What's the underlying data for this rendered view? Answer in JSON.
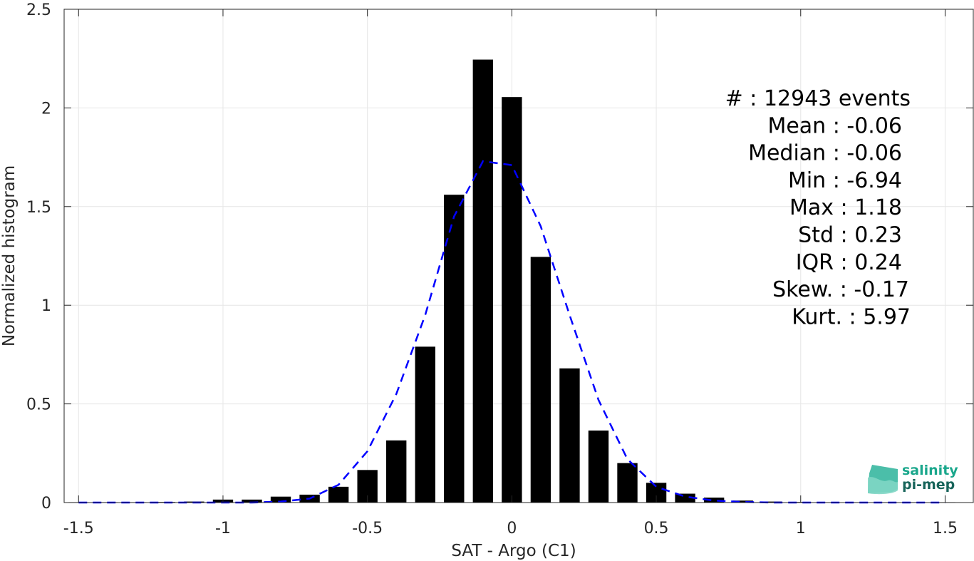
{
  "chart_data": {
    "type": "bar",
    "xlabel": "SAT - Argo (C1)",
    "ylabel": "Normalized histogram",
    "xlim": [
      -1.55,
      1.6
    ],
    "ylim": [
      0,
      2.5
    ],
    "grid": true,
    "x_ticks": [
      -1.5,
      -1,
      -0.5,
      0,
      0.5,
      1,
      1.5
    ],
    "x_tick_labels": [
      "-1.5",
      "-1",
      "-0.5",
      "0",
      "0.5",
      "1",
      "1.5"
    ],
    "y_ticks": [
      0,
      0.5,
      1,
      1.5,
      2,
      2.5
    ],
    "y_tick_labels": [
      "0",
      "0.5",
      "1",
      "1.5",
      "2",
      "2.5"
    ],
    "bar_width": 0.07,
    "bars": {
      "centers": [
        -1.5,
        -1.4,
        -1.3,
        -1.2,
        -1.1,
        -1.0,
        -0.9,
        -0.8,
        -0.7,
        -0.6,
        -0.5,
        -0.4,
        -0.3,
        -0.2,
        -0.1,
        0.0,
        0.1,
        0.2,
        0.3,
        0.4,
        0.5,
        0.6,
        0.7,
        0.8,
        0.9,
        1.0,
        1.1,
        1.2,
        1.3,
        1.4,
        1.5
      ],
      "values": [
        0.002,
        0.002,
        0.002,
        0.003,
        0.005,
        0.015,
        0.015,
        0.03,
        0.04,
        0.08,
        0.165,
        0.315,
        0.79,
        1.56,
        2.245,
        2.055,
        1.245,
        0.68,
        0.365,
        0.2,
        0.1,
        0.045,
        0.025,
        0.01,
        0.005,
        0.003,
        0.002,
        0.002,
        0.002,
        0.002,
        0.002
      ]
    },
    "series": [
      {
        "style": "dashed",
        "color": "#0000ff",
        "x": [
          -1.5,
          -1.4,
          -1.3,
          -1.2,
          -1.1,
          -1.0,
          -0.9,
          -0.8,
          -0.7,
          -0.6,
          -0.5,
          -0.4,
          -0.3,
          -0.2,
          -0.1,
          0.0,
          0.1,
          0.2,
          0.3,
          0.4,
          0.5,
          0.6,
          0.7,
          0.8,
          0.9,
          1.0,
          1.1,
          1.2,
          1.3,
          1.4,
          1.5
        ],
        "y": [
          0,
          0,
          0,
          0,
          0,
          0,
          0,
          0.005,
          0.02,
          0.09,
          0.26,
          0.55,
          0.95,
          1.45,
          1.73,
          1.71,
          1.4,
          0.95,
          0.52,
          0.22,
          0.08,
          0.03,
          0.01,
          0.003,
          0,
          0,
          0,
          0,
          0,
          0,
          0
        ]
      }
    ],
    "annotations": [
      "#  : 12943 events",
      "Mean : -0.06",
      "Median : -0.06",
      "Min : -6.94",
      "Max : 1.18",
      "Std : 0.23",
      "IQR : 0.24",
      "Skew. : -0.17",
      "Kurt. : 5.97"
    ],
    "colors": {
      "bars": "#000000",
      "fit": "#0000ff",
      "grid": "#e6e6e6",
      "axis": "#262626"
    }
  },
  "logo": {
    "line1": "salinity",
    "line2": "pi-mep"
  }
}
